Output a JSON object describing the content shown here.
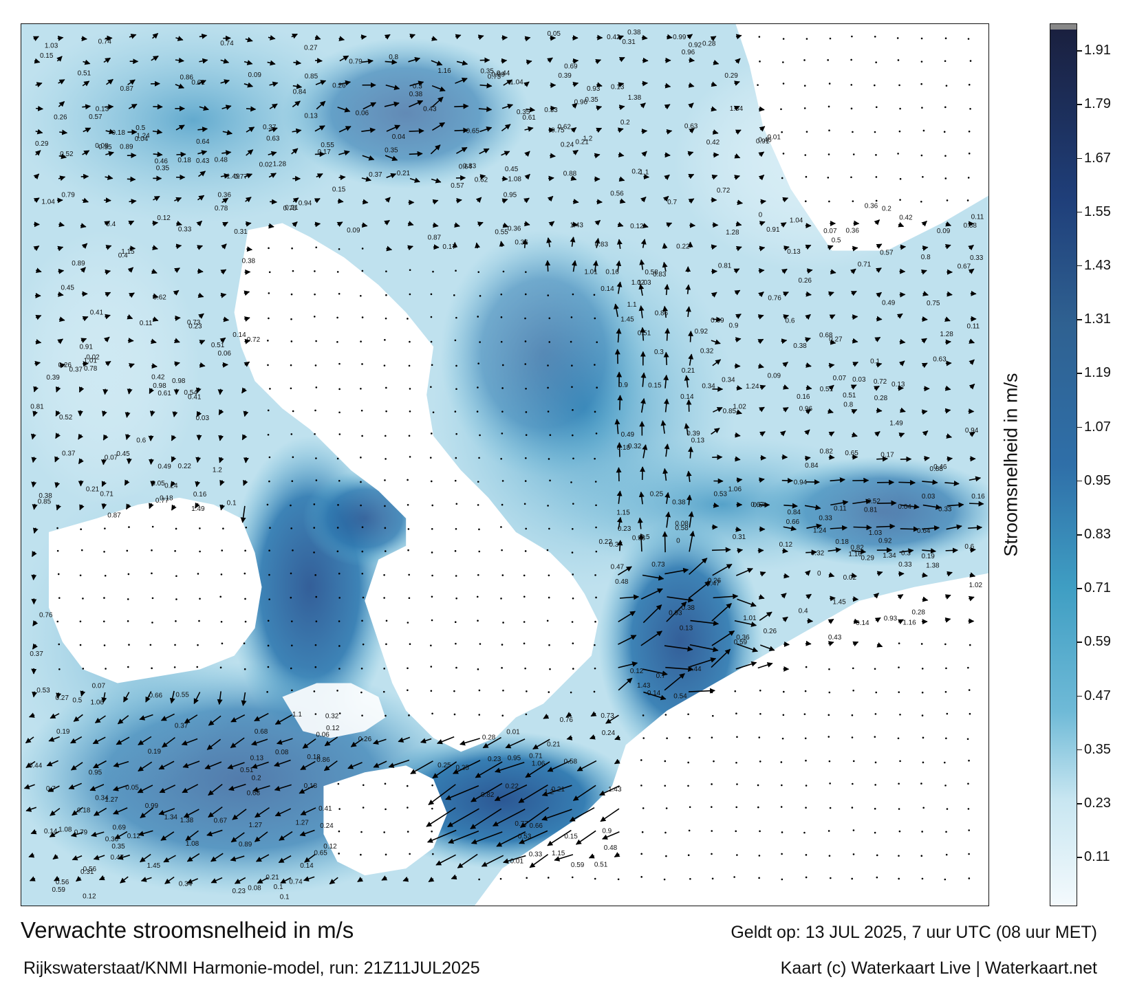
{
  "title": "Verwachte stroomsnelheid in m/s",
  "subtitle": "Rijkswaterstaat/KNMI Harmonie-model, run: 21Z11JUL2025",
  "valid_time": "Geldt op: 13 JUL 2025, 7 uur UTC (08 uur MET)",
  "credit": "Kaart (c) Waterkaart Live | Waterkaart.net",
  "colorbar": {
    "label": "Stroomsnelheid in m/s",
    "ticks": [
      "1.91",
      "1.79",
      "1.67",
      "1.55",
      "1.43",
      "1.31",
      "1.19",
      "1.07",
      "0.95",
      "0.83",
      "0.71",
      "0.59",
      "0.47",
      "0.35",
      "0.23",
      "0.11"
    ],
    "colors": {
      "low": "#f4fafd",
      "mid_low": "#9fd3e6",
      "mid": "#3f9ec3",
      "mid_high": "#2f6fa8",
      "high": "#1f3f7a",
      "max": "#1a1f3d"
    }
  },
  "land_color": "#ffffff",
  "map_labels": [
    {
      "t": "0.26"
    },
    {
      "t": "0.16"
    },
    {
      "t": "0.09"
    },
    {
      "t": "0.18"
    },
    {
      "t": "0.21"
    },
    {
      "t": "0.2"
    },
    {
      "t": "0.15"
    },
    {
      "t": "0.14"
    },
    {
      "t": "0.12"
    },
    {
      "t": "0.13"
    },
    {
      "t": "0.18"
    },
    {
      "t": "0.21"
    },
    {
      "t": "0.22"
    },
    {
      "t": "0.23"
    },
    {
      "t": "0.24"
    },
    {
      "t": "0.28"
    },
    {
      "t": "0.33"
    },
    {
      "t": "0.34"
    },
    {
      "t": "0.35"
    },
    {
      "t": "0.31"
    },
    {
      "t": "0.51"
    },
    {
      "t": "0.42"
    },
    {
      "t": "0.36"
    },
    {
      "t": "0.37"
    },
    {
      "t": "0.5"
    },
    {
      "t": "0.38"
    },
    {
      "t": "0.32"
    },
    {
      "t": "0.07"
    },
    {
      "t": "0.08"
    },
    {
      "t": "0.1"
    },
    {
      "t": "0.11"
    },
    {
      "t": "0.12"
    },
    {
      "t": "0.13"
    },
    {
      "t": "0.14"
    },
    {
      "t": "0.17"
    },
    {
      "t": "0.19"
    },
    {
      "t": "0.26"
    },
    {
      "t": "0.27"
    },
    {
      "t": "0.29"
    },
    {
      "t": "0.3"
    },
    {
      "t": "0.33"
    },
    {
      "t": "0.35"
    },
    {
      "t": "0.36"
    },
    {
      "t": "0.37"
    },
    {
      "t": "0.38"
    },
    {
      "t": "0.39"
    },
    {
      "t": "0.4"
    },
    {
      "t": "0.41"
    },
    {
      "t": "0.44"
    },
    {
      "t": "0.45"
    },
    {
      "t": "0.46"
    },
    {
      "t": "0.47"
    },
    {
      "t": "0.48"
    },
    {
      "t": "0.49"
    },
    {
      "t": "0.51"
    },
    {
      "t": "0.52"
    },
    {
      "t": "0.55"
    },
    {
      "t": "0.61"
    },
    {
      "t": "0.62"
    },
    {
      "t": "0.64"
    },
    {
      "t": "0.66"
    },
    {
      "t": "0.67"
    },
    {
      "t": "0.72"
    },
    {
      "t": "0.74"
    },
    {
      "t": "0.76"
    },
    {
      "t": "0.79"
    },
    {
      "t": "0.84"
    },
    {
      "t": "0.85"
    },
    {
      "t": "0.89"
    },
    {
      "t": "0.91"
    },
    {
      "t": "0.92"
    },
    {
      "t": "0.93"
    },
    {
      "t": "0.94"
    },
    {
      "t": "0.95"
    },
    {
      "t": "1.01"
    },
    {
      "t": "1.03"
    },
    {
      "t": "1.04"
    },
    {
      "t": "1.1"
    },
    {
      "t": "1.16"
    },
    {
      "t": "1.2"
    },
    {
      "t": "1.24"
    },
    {
      "t": "1.27"
    },
    {
      "t": "1.28"
    },
    {
      "t": "1.34"
    },
    {
      "t": "1.43"
    },
    {
      "t": "1.45"
    },
    {
      "t": "1.49"
    },
    {
      "t": "0.05"
    },
    {
      "t": "0.06"
    },
    {
      "t": "0.04"
    },
    {
      "t": "0.03"
    },
    {
      "t": "0.02"
    },
    {
      "t": "0.01"
    },
    {
      "t": "0"
    },
    {
      "t": "0.53"
    },
    {
      "t": "0.54"
    },
    {
      "t": "0.56"
    },
    {
      "t": "0.57"
    },
    {
      "t": "0.58"
    },
    {
      "t": "0.59"
    },
    {
      "t": "0.6"
    },
    {
      "t": "0.63"
    },
    {
      "t": "0.65"
    },
    {
      "t": "0.68"
    },
    {
      "t": "0.69"
    },
    {
      "t": "0.7"
    },
    {
      "t": "0.73"
    },
    {
      "t": "0.77"
    },
    {
      "t": "0.78"
    },
    {
      "t": "0.8"
    },
    {
      "t": "0.81"
    },
    {
      "t": "0.82"
    },
    {
      "t": "0.83"
    },
    {
      "t": "0.86"
    },
    {
      "t": "0.87"
    },
    {
      "t": "0.88"
    },
    {
      "t": "0.9"
    },
    {
      "t": "0.96"
    },
    {
      "t": "0.98"
    },
    {
      "t": "0.99"
    },
    {
      "t": "1.02"
    },
    {
      "t": "1.06"
    },
    {
      "t": "1.08"
    },
    {
      "t": "1.15"
    },
    {
      "t": "1.38"
    },
    {
      "t": "0.43"
    },
    {
      "t": "0.25"
    },
    {
      "t": "0.71"
    },
    {
      "t": "0.75"
    }
  ]
}
